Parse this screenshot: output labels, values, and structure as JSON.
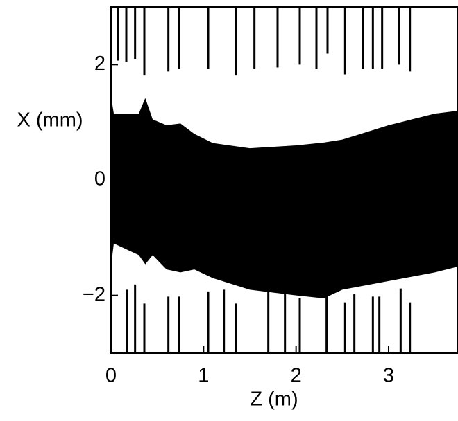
{
  "chart_data": {
    "type": "area",
    "xlabel": "Z (m)",
    "ylabel": "X (mm)",
    "xlim": [
      0,
      3.75
    ],
    "ylim": [
      -3,
      3
    ],
    "xticks": [
      0,
      1,
      2,
      3
    ],
    "yticks": [
      {
        "value": -2,
        "label": "−2"
      },
      0,
      2
    ],
    "color": "#000000",
    "x": [
      0,
      0.03,
      0.3,
      0.37,
      0.45,
      0.6,
      0.75,
      0.9,
      1.1,
      1.5,
      2.0,
      2.3,
      2.5,
      3.0,
      3.5,
      3.75
    ],
    "upper": [
      1.45,
      1.15,
      1.15,
      1.42,
      1.05,
      0.95,
      0.98,
      0.8,
      0.64,
      0.55,
      0.6,
      0.65,
      0.7,
      0.95,
      1.15,
      1.2
    ],
    "lower": [
      -1.5,
      -1.1,
      -1.3,
      -1.46,
      -1.3,
      -1.55,
      -1.6,
      -1.55,
      -1.7,
      -1.9,
      -2.0,
      -2.05,
      -1.9,
      -1.75,
      -1.6,
      -1.5
    ],
    "top_electrodes": {
      "z": [
        0.075,
        0.165,
        0.26,
        0.36,
        0.62,
        0.735,
        1.05,
        1.35,
        1.55,
        1.8,
        2.04,
        2.22,
        2.34,
        2.53,
        2.72,
        2.83,
        2.93,
        3.11,
        3.23
      ],
      "end": [
        2.07,
        2.05,
        2.1,
        1.81,
        1.88,
        1.93,
        1.93,
        1.81,
        1.93,
        1.95,
        2.0,
        1.93,
        2.19,
        1.83,
        1.93,
        1.93,
        1.93,
        2.0,
        1.88
      ]
    },
    "bottom_electrodes": {
      "z": [
        0.17,
        0.26,
        0.36,
        0.62,
        0.735,
        1.05,
        1.22,
        1.35,
        1.7,
        1.88,
        2.04,
        2.33,
        2.53,
        2.63,
        2.83,
        2.9,
        3.13,
        3.23
      ],
      "end": [
        -1.9,
        -1.81,
        -2.14,
        -2.02,
        -2.02,
        -1.93,
        -1.9,
        -2.14,
        -1.9,
        -1.88,
        -2.05,
        -1.94,
        -2.12,
        -1.98,
        -2.02,
        -2.02,
        -1.88,
        -2.12
      ]
    }
  }
}
